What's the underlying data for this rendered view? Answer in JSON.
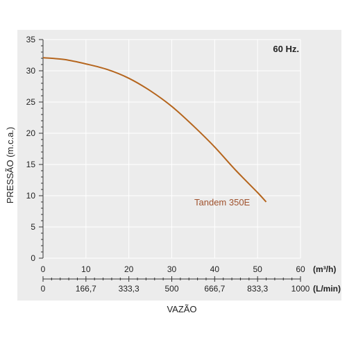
{
  "colors": {
    "panel": "#ececec",
    "grid": "#ffffff",
    "curve": "#b5651d",
    "label": "#a0522d",
    "axis": "#333333"
  },
  "chart_data": {
    "type": "line",
    "annotation": "60 Hz.",
    "ylabel": "PRESSÃO (m.c.a.)",
    "xlabel": "VAZÃO",
    "ylim": [
      0,
      35
    ],
    "xlim": [
      0,
      60
    ],
    "y_ticks": [
      "0",
      "5",
      "10",
      "15",
      "20",
      "25",
      "30",
      "35"
    ],
    "x_ticks": [
      "0",
      "10",
      "20",
      "30",
      "40",
      "50",
      "60"
    ],
    "x_unit": "(m³/h)",
    "x2_ticks": [
      "0",
      "166,7",
      "333,3",
      "500",
      "666,7",
      "833,3",
      "1000"
    ],
    "x2_unit": "(L/min)",
    "grid": true,
    "series": [
      {
        "name": "Tandem 350E",
        "x": [
          0,
          5,
          10,
          15,
          20,
          25,
          30,
          35,
          40,
          45,
          50,
          52
        ],
        "values": [
          32.1,
          31.8,
          31.1,
          30.2,
          28.8,
          26.8,
          24.3,
          21.2,
          17.8,
          14.0,
          10.5,
          9.0
        ]
      }
    ]
  }
}
